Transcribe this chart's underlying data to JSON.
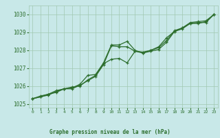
{
  "title": "Graphe pression niveau de la mer (hPa)",
  "background_color": "#c8e8e8",
  "label_bg_color": "#60b060",
  "grid_color": "#a0c8b0",
  "line_color": "#2d6e2d",
  "xlim": [
    -0.5,
    23.5
  ],
  "ylim": [
    1024.8,
    1030.5
  ],
  "yticks": [
    1025,
    1026,
    1027,
    1028,
    1029,
    1030
  ],
  "xticks": [
    0,
    1,
    2,
    3,
    4,
    5,
    6,
    7,
    8,
    9,
    10,
    11,
    12,
    13,
    14,
    15,
    16,
    17,
    18,
    19,
    20,
    21,
    22,
    23
  ],
  "line1_x": [
    0,
    1,
    2,
    3,
    4,
    5,
    6,
    7,
    8,
    9,
    10,
    11,
    12,
    13,
    14,
    15,
    16,
    17,
    18,
    19,
    20,
    21,
    22,
    23
  ],
  "line1_y": [
    1025.3,
    1025.45,
    1025.55,
    1025.75,
    1025.85,
    1025.85,
    1026.05,
    1026.3,
    1026.55,
    1027.2,
    1028.25,
    1028.2,
    1028.2,
    1027.95,
    1027.85,
    1027.95,
    1028.05,
    1028.45,
    1029.05,
    1029.2,
    1029.5,
    1029.55,
    1029.55,
    1030.0
  ],
  "line2_x": [
    0,
    1,
    2,
    3,
    4,
    5,
    6,
    7,
    8,
    9,
    10,
    11,
    12,
    13,
    14,
    15,
    16,
    17,
    18,
    19,
    20,
    21,
    22,
    23
  ],
  "line2_y": [
    1025.3,
    1025.4,
    1025.55,
    1025.65,
    1025.85,
    1025.95,
    1026.0,
    1026.35,
    1026.6,
    1027.25,
    1027.5,
    1027.55,
    1027.3,
    1027.95,
    1027.9,
    1028.0,
    1028.2,
    1028.7,
    1029.05,
    1029.25,
    1029.5,
    1029.5,
    1029.6,
    1030.0
  ],
  "line3_x": [
    0,
    1,
    2,
    3,
    4,
    5,
    6,
    7,
    8,
    9,
    10,
    11,
    12,
    13,
    14,
    15,
    16,
    17,
    18,
    19,
    20,
    21,
    22,
    23
  ],
  "line3_y": [
    1025.3,
    1025.4,
    1025.5,
    1025.7,
    1025.85,
    1025.9,
    1026.1,
    1026.6,
    1026.65,
    1027.3,
    1028.3,
    1028.3,
    1028.5,
    1028.0,
    1027.85,
    1028.0,
    1028.15,
    1028.55,
    1029.1,
    1029.25,
    1029.55,
    1029.6,
    1029.65,
    1030.0
  ]
}
